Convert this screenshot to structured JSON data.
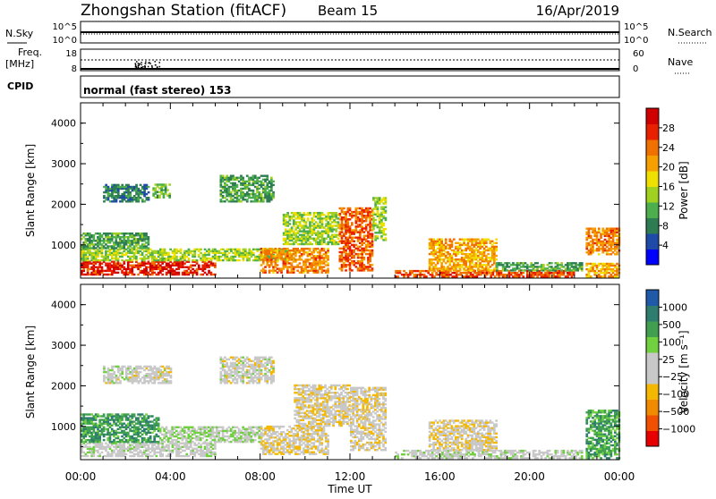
{
  "header": {
    "station": "Zhongshan Station (fitACF)",
    "beam": "Beam 15",
    "date": "16/Apr/2019"
  },
  "top_panels": {
    "nsky_label": "N.Sky",
    "nsky_ticks": [
      "10^5",
      "10^0"
    ],
    "nsearch_label": "N.Search",
    "nsearch_ticks": [
      "10^5",
      "10^0"
    ],
    "freq_label_line1": "Freq.",
    "freq_label_line2": "[MHz]",
    "freq_ticks": [
      "18",
      "8"
    ],
    "nave_label": "Nave",
    "nave_ticks": [
      "60",
      "0"
    ],
    "cpid_label": "CPID",
    "cpid_text": "normal (fast stereo) 153"
  },
  "chart_data": [
    {
      "type": "heatmap",
      "name": "power",
      "ylabel": "Slant Range [km]",
      "ylim": [
        180,
        4500
      ],
      "yticks": [
        "4000",
        "3000",
        "2000",
        "1000"
      ],
      "ytick_values": [
        4000,
        3000,
        2000,
        1000
      ],
      "xlim": [
        0,
        24
      ],
      "colorbar": {
        "label": "Power [dB]",
        "ticks": [
          "28",
          "24",
          "20",
          "16",
          "12",
          "8",
          "4"
        ],
        "tick_values": [
          28,
          24,
          20,
          16,
          12,
          8,
          4
        ],
        "range": [
          0,
          31
        ],
        "colors": [
          "#0000ff",
          "#1e4aa8",
          "#2e7d52",
          "#4cae4c",
          "#a0d020",
          "#f0e000",
          "#f5a000",
          "#f07000",
          "#e82000",
          "#d00000"
        ]
      },
      "regions": [
        {
          "t0": 0.0,
          "t1": 6.0,
          "r0": 250,
          "r1": 600,
          "v": 27
        },
        {
          "t0": 0.0,
          "t1": 9.5,
          "r0": 600,
          "r1": 900,
          "v": 14
        },
        {
          "t0": 0.0,
          "t1": 3.0,
          "r0": 900,
          "r1": 1300,
          "v": 10
        },
        {
          "t0": 1.0,
          "t1": 3.0,
          "r0": 2050,
          "r1": 2500,
          "v": 8
        },
        {
          "t0": 3.2,
          "t1": 4.0,
          "r0": 2150,
          "r1": 2500,
          "v": 12
        },
        {
          "t0": 6.2,
          "t1": 8.6,
          "r0": 2050,
          "r1": 2700,
          "v": 10
        },
        {
          "t0": 8.0,
          "t1": 11.0,
          "r0": 300,
          "r1": 900,
          "v": 22
        },
        {
          "t0": 9.0,
          "t1": 11.5,
          "r0": 1000,
          "r1": 1800,
          "v": 14
        },
        {
          "t0": 11.5,
          "t1": 13.0,
          "r0": 350,
          "r1": 1900,
          "v": 24
        },
        {
          "t0": 13.0,
          "t1": 13.6,
          "r0": 1100,
          "r1": 2150,
          "v": 14
        },
        {
          "t0": 14.0,
          "t1": 22.0,
          "r0": 200,
          "r1": 350,
          "v": 25
        },
        {
          "t0": 15.5,
          "t1": 18.5,
          "r0": 350,
          "r1": 1150,
          "v": 20
        },
        {
          "t0": 18.5,
          "t1": 22.3,
          "r0": 350,
          "r1": 550,
          "v": 10
        },
        {
          "t0": 22.5,
          "t1": 24.0,
          "r0": 200,
          "r1": 550,
          "v": 20
        },
        {
          "t0": 22.5,
          "t1": 24.0,
          "r0": 750,
          "r1": 1400,
          "v": 22
        }
      ]
    },
    {
      "type": "heatmap",
      "name": "velocity",
      "ylabel": "Slant Range [km]",
      "xlabel": "Time UT",
      "ylim": [
        180,
        4500
      ],
      "yticks": [
        "4000",
        "3000",
        "2000",
        "1000"
      ],
      "ytick_values": [
        4000,
        3000,
        2000,
        1000
      ],
      "xlim": [
        0,
        24
      ],
      "xticks": [
        "00:00",
        "04:00",
        "08:00",
        "12:00",
        "16:00",
        "20:00",
        "00:00"
      ],
      "xtick_values": [
        0,
        4,
        8,
        12,
        16,
        20,
        24
      ],
      "colorbar": {
        "label": "Velocity [m s⁻¹]",
        "ticks": [
          "1000",
          "500",
          "100",
          "25",
          "−25",
          "−100",
          "−500",
          "−1000"
        ],
        "tick_values": [
          1000,
          500,
          100,
          25,
          -25,
          -100,
          -500,
          -1000
        ],
        "range": [
          -1250,
          1250
        ],
        "colors": [
          "#e80000",
          "#f05000",
          "#f08a00",
          "#f5b800",
          "#c8c8c8",
          "#c8c8c8",
          "#70d040",
          "#40a050",
          "#2e7d6e",
          "#1e5aa8"
        ]
      },
      "regions": [
        {
          "t0": 0.0,
          "t1": 6.0,
          "r0": 250,
          "r1": 600,
          "v": 60
        },
        {
          "t0": 0.0,
          "t1": 3.5,
          "r0": 600,
          "r1": 1300,
          "v": 700
        },
        {
          "t0": 3.5,
          "t1": 8.0,
          "r0": 600,
          "r1": 1000,
          "v": 200
        },
        {
          "t0": 1.0,
          "t1": 4.0,
          "r0": 2050,
          "r1": 2500,
          "v": 0
        },
        {
          "t0": 6.2,
          "t1": 8.6,
          "r0": 2050,
          "r1": 2700,
          "v": 0
        },
        {
          "t0": 8.0,
          "t1": 11.0,
          "r0": 300,
          "r1": 1000,
          "v": -150
        },
        {
          "t0": 9.5,
          "t1": 12.0,
          "r0": 1000,
          "r1": 2000,
          "v": -150
        },
        {
          "t0": 12.0,
          "t1": 13.6,
          "r0": 400,
          "r1": 1950,
          "v": -120
        },
        {
          "t0": 14.0,
          "t1": 22.3,
          "r0": 200,
          "r1": 400,
          "v": 80
        },
        {
          "t0": 15.5,
          "t1": 18.5,
          "r0": 400,
          "r1": 1150,
          "v": -150
        },
        {
          "t0": 22.5,
          "t1": 24.0,
          "r0": 200,
          "r1": 1400,
          "v": 600
        }
      ]
    }
  ]
}
